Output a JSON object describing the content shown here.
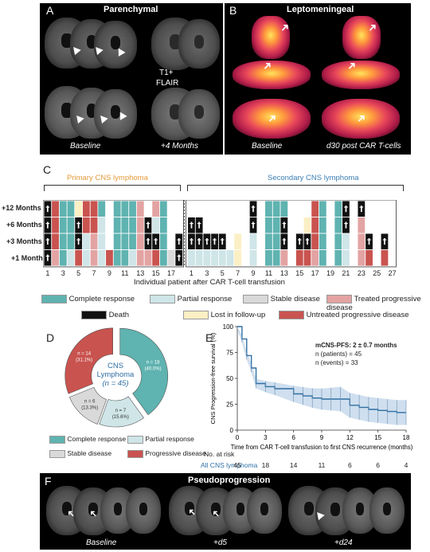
{
  "panelA": {
    "letter": "A",
    "title": "Parenchymal",
    "t1": "T1+",
    "flair": "FLAIR",
    "baseline": "Baseline",
    "plus4": "+4 Months"
  },
  "panelB": {
    "letter": "B",
    "title": "Leptomeningeal",
    "baseline": "Baseline",
    "d30": "d30 post CAR T-cells"
  },
  "panelC": {
    "letter": "C",
    "primary": "Primary CNS lymphoma",
    "secondary": "Secondary CNS lymphoma",
    "rowlabels": [
      "+12 Months",
      "+6 Months",
      "+3 Months",
      "+1 Month"
    ],
    "xlabel": "Individual patient after CAR T-cell transfusion",
    "ticks_primary": [
      "1",
      "3",
      "5",
      "7",
      "9",
      "11",
      "13",
      "15",
      "17"
    ],
    "ticks_secondary": [
      "1",
      "3",
      "5",
      "7",
      "9",
      "11",
      "13",
      "15",
      "17",
      "19",
      "21",
      "23",
      "25",
      "27"
    ],
    "colors": {
      "CR": "#5fb3b0",
      "PR": "#cfe5e8",
      "SD": "#d9d9d9",
      "TPD": "#e3a3a3",
      "D": "#111111",
      "LF": "#fbefc4",
      "UPD": "#c9534f",
      "N": "#ffffff"
    },
    "primary_grid": [
      [
        "D",
        "UPD",
        "CR",
        "CR",
        "LF",
        "UPD",
        "UPD",
        "CR",
        "N",
        "CR",
        "CR",
        "CR",
        "TPD",
        "N",
        "TPD",
        "CR",
        "N",
        "N"
      ],
      [
        "D",
        "UPD",
        "CR",
        "CR",
        "D",
        "UPD",
        "UPD",
        "PR",
        "N",
        "CR",
        "CR",
        "CR",
        "TPD",
        "D",
        "PR",
        "CR",
        "N",
        "N"
      ],
      [
        "D",
        "UPD",
        "CR",
        "CR",
        "D",
        "PR",
        "TPD",
        "PR",
        "N",
        "CR",
        "CR",
        "CR",
        "TPD",
        "D",
        "D",
        "CR",
        "N",
        "D"
      ],
      [
        "D",
        "TPD",
        "CR",
        "PR",
        "UPD",
        "PR",
        "TPD",
        "PR",
        "UPD",
        "CR",
        "CR",
        "PR",
        "TPD",
        "TPD",
        "UPD",
        "CR",
        "SD",
        "D"
      ]
    ],
    "secondary_grid": [
      [
        "N",
        "N",
        "N",
        "N",
        "N",
        "N",
        "N",
        "N",
        "D",
        "N",
        "CR",
        "CR",
        "CR",
        "N",
        "N",
        "N",
        "UPD",
        "CR",
        "N",
        "CR",
        "D",
        "N",
        "D",
        "N",
        "N",
        "N",
        "N"
      ],
      [
        "D",
        "D",
        "N",
        "N",
        "N",
        "N",
        "N",
        "N",
        "D",
        "N",
        "CR",
        "CR",
        "D",
        "N",
        "N",
        "LF",
        "UPD",
        "CR",
        "N",
        "CR",
        "D",
        "N",
        "TPD",
        "N",
        "N",
        "N",
        "N"
      ],
      [
        "D",
        "D",
        "D",
        "D",
        "D",
        "N",
        "LF",
        "N",
        "PR",
        "N",
        "CR",
        "CR",
        "D",
        "N",
        "D",
        "D",
        "UPD",
        "CR",
        "N",
        "CR",
        "PR",
        "N",
        "TPD",
        "D",
        "N",
        "D",
        "N"
      ],
      [
        "PR",
        "PR",
        "PR",
        "PR",
        "PR",
        "PR",
        "LF",
        "N",
        "PR",
        "N",
        "CR",
        "CR",
        "TPD",
        "N",
        "UPD",
        "UPD",
        "TPD",
        "CR",
        "N",
        "CR",
        "PR",
        "N",
        "TPD",
        "UPD",
        "N",
        "UPD",
        "N"
      ]
    ],
    "death_glyph": "†",
    "legend": [
      {
        "key": "CR",
        "label": "Complete response"
      },
      {
        "key": "PR",
        "label": "Partial response"
      },
      {
        "key": "SD",
        "label": "Stable disease"
      },
      {
        "key": "TPD",
        "label": "Treated progressive disease"
      },
      {
        "key": "D",
        "label": "Death"
      },
      {
        "key": "LF",
        "label": "Lost in follow-up"
      },
      {
        "key": "UPD",
        "label": "Untreated progressive disease"
      }
    ]
  },
  "panelD": {
    "letter": "D",
    "center_line1": "CNS",
    "center_line2": "Lymphoma",
    "center_line3": "(n = 45)",
    "legend": [
      {
        "label": "Complete response",
        "color": "#5fb3b0"
      },
      {
        "label": "Partial response",
        "color": "#cfe5e8"
      },
      {
        "label": "Stable disease",
        "color": "#d9d9d9"
      },
      {
        "label": "Progressive disease",
        "color": "#c9534f"
      }
    ]
  },
  "panelE": {
    "letter": "E",
    "annot1": "mCNS-PFS: 2 ± 0.7 months",
    "annot2": "n (patients) = 45",
    "annot3": "n (events) = 33",
    "risk_title": "No. at risk",
    "risk_label": "All CNS lymphoma",
    "risk_values": [
      "45",
      "18",
      "14",
      "11",
      "6",
      "6",
      "4"
    ]
  },
  "chart_data": [
    {
      "type": "pie",
      "title": "",
      "categories": [
        "Complete response",
        "Partial response",
        "Stable disease",
        "Progressive disease"
      ],
      "values": [
        18,
        7,
        6,
        14
      ],
      "labels": [
        "n = 18\n(40.0%)",
        "n = 7\n(15.6%)",
        "n = 6\n(13.3%)",
        "n = 14\n(31.1%)"
      ],
      "colors": [
        "#5fb3b0",
        "#cfe5e8",
        "#d9d9d9",
        "#c9534f"
      ]
    },
    {
      "type": "line",
      "title": "",
      "xlabel": "Time from CAR T-cell transfusion to first CNS recurrence (months)",
      "ylabel": "CNS Progression-free survival (%)",
      "xlim": [
        0,
        18
      ],
      "ylim": [
        0,
        100
      ],
      "xticks": [
        0,
        3,
        6,
        9,
        12,
        15,
        18
      ],
      "yticks": [
        0,
        25,
        50,
        75,
        100
      ],
      "x": [
        0,
        0.5,
        1,
        1.5,
        2,
        3,
        4,
        6,
        7,
        8,
        9,
        10,
        11,
        12,
        13,
        14,
        15,
        16,
        17,
        18
      ],
      "y": [
        100,
        88,
        72,
        60,
        45,
        42,
        40,
        35,
        33,
        31,
        30,
        30,
        30,
        24,
        22,
        20,
        19,
        18,
        17,
        17
      ]
    }
  ],
  "panelF": {
    "letter": "F",
    "title": "Pseudoprogression",
    "baseline": "Baseline",
    "d5": "+d5",
    "d24": "+d24"
  }
}
